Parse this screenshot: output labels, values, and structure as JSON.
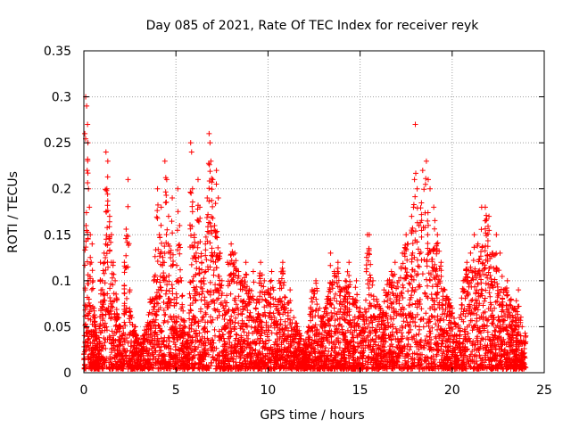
{
  "chart_data": {
    "type": "scatter",
    "title": "Day 085 of 2021, Rate Of TEC Index for receiver reyk",
    "xlabel": "GPS time / hours",
    "ylabel": "ROTI / TECUs",
    "xlim": [
      0,
      25
    ],
    "ylim": [
      0,
      0.35
    ],
    "xticks": [
      0,
      5,
      10,
      15,
      20,
      25
    ],
    "xtick_labels": [
      "0",
      "5",
      "10",
      "15",
      "20",
      "25"
    ],
    "yticks": [
      0,
      0.05,
      0.1,
      0.15,
      0.2,
      0.25,
      0.3,
      0.35
    ],
    "ytick_labels": [
      "0",
      "0.05",
      "0.1",
      "0.15",
      "0.2",
      "0.25",
      "0.3",
      "0.35"
    ],
    "grid": true,
    "marker": "plus",
    "colors": {
      "series": "#ff0000",
      "grid": "#a0a0a0",
      "axis": "#000000"
    },
    "series": [
      {
        "points": [
          [
            0.05,
            0.26
          ],
          [
            0.1,
            0.3
          ],
          [
            0.15,
            0.29
          ],
          [
            0.2,
            0.27
          ],
          [
            0.22,
            0.25
          ],
          [
            0.18,
            0.22
          ],
          [
            0.25,
            0.2
          ],
          [
            0.3,
            0.18
          ],
          [
            0.12,
            0.16
          ],
          [
            0.35,
            0.15
          ],
          [
            0.4,
            0.12
          ],
          [
            0.45,
            0.14
          ],
          [
            0.5,
            0.1
          ],
          [
            0.08,
            0.09
          ],
          [
            0.28,
            0.08
          ],
          [
            0.55,
            0.07
          ],
          [
            0.6,
            0.06
          ],
          [
            0.65,
            0.05
          ],
          [
            0.7,
            0.04
          ],
          [
            0.75,
            0.03
          ],
          [
            0.8,
            0.02
          ],
          [
            0.9,
            0.12
          ],
          [
            1.0,
            0.1
          ],
          [
            1.1,
            0.13
          ],
          [
            1.2,
            0.24
          ],
          [
            1.3,
            0.23
          ],
          [
            1.25,
            0.2
          ],
          [
            1.4,
            0.17
          ],
          [
            1.5,
            0.15
          ],
          [
            1.6,
            0.12
          ],
          [
            1.7,
            0.1
          ],
          [
            1.8,
            0.08
          ],
          [
            1.9,
            0.06
          ],
          [
            2.0,
            0.05
          ],
          [
            2.1,
            0.04
          ],
          [
            2.2,
            0.12
          ],
          [
            2.4,
            0.21
          ],
          [
            2.5,
            0.09
          ],
          [
            2.6,
            0.06
          ],
          [
            2.8,
            0.05
          ],
          [
            3.0,
            0.03
          ],
          [
            3.2,
            0.04
          ],
          [
            3.4,
            0.05
          ],
          [
            3.6,
            0.08
          ],
          [
            3.8,
            0.1
          ],
          [
            4.0,
            0.2
          ],
          [
            4.1,
            0.15
          ],
          [
            4.2,
            0.18
          ],
          [
            4.3,
            0.12
          ],
          [
            4.4,
            0.23
          ],
          [
            4.5,
            0.21
          ],
          [
            4.6,
            0.17
          ],
          [
            4.7,
            0.13
          ],
          [
            4.8,
            0.19
          ],
          [
            4.9,
            0.08
          ],
          [
            5.0,
            0.06
          ],
          [
            5.1,
            0.2
          ],
          [
            5.2,
            0.16
          ],
          [
            5.3,
            0.1
          ],
          [
            5.5,
            0.05
          ],
          [
            5.7,
            0.04
          ],
          [
            5.8,
            0.25
          ],
          [
            5.85,
            0.24
          ],
          [
            5.9,
            0.2
          ],
          [
            6.0,
            0.15
          ],
          [
            6.1,
            0.13
          ],
          [
            6.2,
            0.21
          ],
          [
            6.3,
            0.18
          ],
          [
            6.4,
            0.12
          ],
          [
            6.5,
            0.1
          ],
          [
            6.6,
            0.14
          ],
          [
            6.7,
            0.19
          ],
          [
            6.8,
            0.26
          ],
          [
            6.85,
            0.25
          ],
          [
            6.9,
            0.23
          ],
          [
            7.0,
            0.21
          ],
          [
            7.1,
            0.16
          ],
          [
            7.2,
            0.22
          ],
          [
            7.3,
            0.19
          ],
          [
            7.4,
            0.13
          ],
          [
            7.5,
            0.1
          ],
          [
            7.6,
            0.07
          ],
          [
            7.8,
            0.12
          ],
          [
            8.0,
            0.14
          ],
          [
            8.2,
            0.13
          ],
          [
            8.4,
            0.11
          ],
          [
            8.6,
            0.1
          ],
          [
            8.8,
            0.12
          ],
          [
            9.0,
            0.09
          ],
          [
            9.2,
            0.11
          ],
          [
            9.4,
            0.08
          ],
          [
            9.6,
            0.12
          ],
          [
            9.8,
            0.1
          ],
          [
            10.0,
            0.09
          ],
          [
            10.2,
            0.11
          ],
          [
            10.4,
            0.08
          ],
          [
            10.6,
            0.1
          ],
          [
            10.8,
            0.12
          ],
          [
            11.0,
            0.07
          ],
          [
            11.2,
            0.09
          ],
          [
            11.4,
            0.06
          ],
          [
            11.6,
            0.05
          ],
          [
            11.8,
            0.04
          ],
          [
            12.0,
            0.03
          ],
          [
            12.2,
            0.05
          ],
          [
            12.4,
            0.09
          ],
          [
            12.6,
            0.1
          ],
          [
            12.8,
            0.07
          ],
          [
            13.0,
            0.06
          ],
          [
            13.2,
            0.08
          ],
          [
            13.4,
            0.13
          ],
          [
            13.6,
            0.11
          ],
          [
            13.8,
            0.12
          ],
          [
            14.0,
            0.09
          ],
          [
            14.2,
            0.1
          ],
          [
            14.4,
            0.12
          ],
          [
            14.6,
            0.08
          ],
          [
            14.8,
            0.1
          ],
          [
            15.0,
            0.07
          ],
          [
            15.2,
            0.06
          ],
          [
            15.4,
            0.15
          ],
          [
            15.5,
            0.15
          ],
          [
            15.7,
            0.1
          ],
          [
            15.9,
            0.08
          ],
          [
            16.1,
            0.07
          ],
          [
            16.3,
            0.09
          ],
          [
            16.5,
            0.1
          ],
          [
            16.7,
            0.11
          ],
          [
            16.9,
            0.12
          ],
          [
            17.1,
            0.1
          ],
          [
            17.3,
            0.13
          ],
          [
            17.5,
            0.15
          ],
          [
            17.6,
            0.14
          ],
          [
            17.8,
            0.17
          ],
          [
            17.9,
            0.18
          ],
          [
            18.0,
            0.27
          ],
          [
            18.1,
            0.2
          ],
          [
            18.2,
            0.16
          ],
          [
            18.4,
            0.22
          ],
          [
            18.6,
            0.23
          ],
          [
            18.7,
            0.21
          ],
          [
            18.8,
            0.2
          ],
          [
            19.0,
            0.18
          ],
          [
            19.2,
            0.15
          ],
          [
            19.4,
            0.12
          ],
          [
            19.6,
            0.09
          ],
          [
            19.8,
            0.08
          ],
          [
            20.0,
            0.07
          ],
          [
            20.2,
            0.05
          ],
          [
            20.4,
            0.06
          ],
          [
            20.6,
            0.1
          ],
          [
            20.8,
            0.12
          ],
          [
            21.0,
            0.13
          ],
          [
            21.2,
            0.15
          ],
          [
            21.4,
            0.14
          ],
          [
            21.6,
            0.18
          ],
          [
            21.8,
            0.18
          ],
          [
            22.0,
            0.17
          ],
          [
            22.2,
            0.13
          ],
          [
            22.4,
            0.15
          ],
          [
            22.6,
            0.13
          ],
          [
            22.8,
            0.09
          ],
          [
            23.0,
            0.1
          ],
          [
            23.2,
            0.08
          ],
          [
            23.4,
            0.07
          ],
          [
            23.6,
            0.09
          ],
          [
            23.8,
            0.05
          ],
          [
            24.0,
            0.04
          ]
        ]
      }
    ]
  }
}
